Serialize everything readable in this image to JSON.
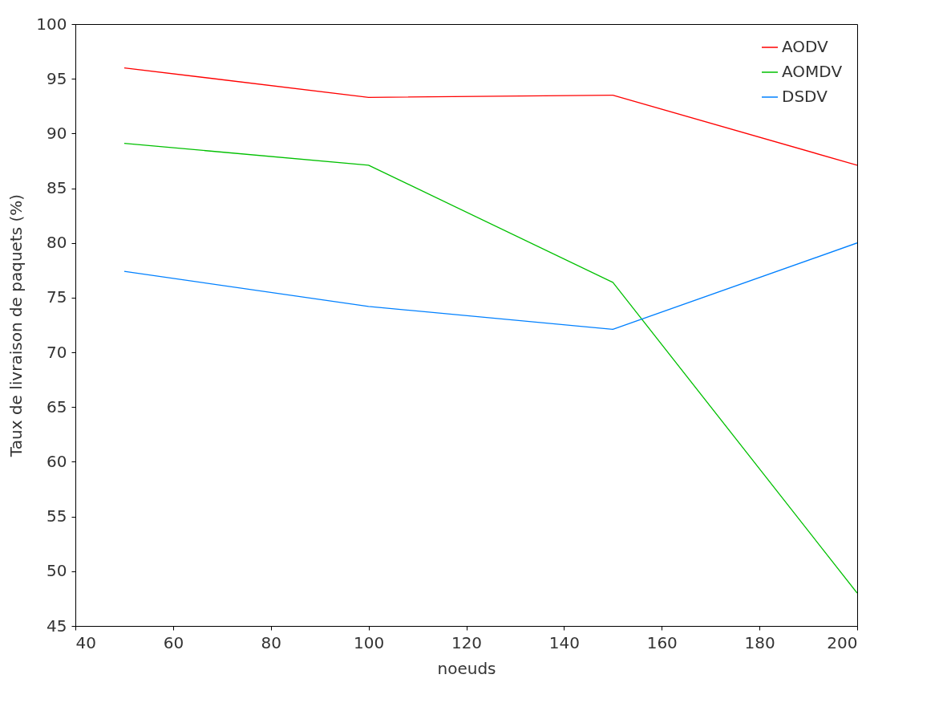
{
  "chart_data": {
    "type": "line",
    "xlabel": "noeuds",
    "ylabel": "Taux de livraison de paquets (%)",
    "x": [
      50,
      100,
      150,
      200
    ],
    "series": [
      {
        "name": "AODV",
        "color": "#ff0000",
        "values": [
          96.0,
          93.3,
          93.5,
          87.1
        ]
      },
      {
        "name": "AOMDV",
        "color": "#00c000",
        "values": [
          89.1,
          87.1,
          76.4,
          48.0
        ]
      },
      {
        "name": "DSDV",
        "color": "#0080ff",
        "values": [
          77.4,
          74.2,
          72.1,
          80.0
        ]
      }
    ],
    "xlim": [
      40,
      200
    ],
    "xticks": [
      40,
      60,
      80,
      100,
      120,
      140,
      160,
      180,
      200
    ],
    "ylim": [
      45,
      100
    ],
    "yticks": [
      45,
      50,
      55,
      60,
      65,
      70,
      75,
      80,
      85,
      90,
      95,
      100
    ],
    "grid": false,
    "legend": "top right",
    "marker": "none",
    "line_style": "solid"
  }
}
